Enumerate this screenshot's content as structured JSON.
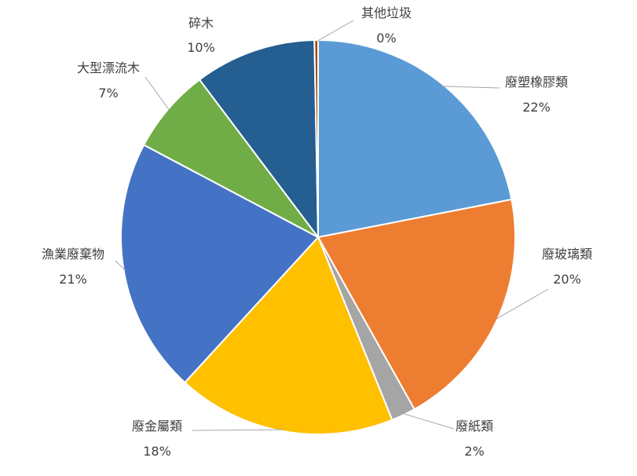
{
  "chart_data": {
    "type": "pie",
    "title": "",
    "slices": [
      {
        "label": "廢塑橡膠類",
        "value": 22,
        "percent_label": "22%",
        "color": "#5B9BD5"
      },
      {
        "label": "廢玻璃類",
        "value": 20,
        "percent_label": "20%",
        "color": "#ED7D31"
      },
      {
        "label": "廢紙類",
        "value": 2,
        "percent_label": "2%",
        "color": "#A5A5A5"
      },
      {
        "label": "廢金屬類",
        "value": 18,
        "percent_label": "18%",
        "color": "#FFC000"
      },
      {
        "label": "漁業廢棄物",
        "value": 21,
        "percent_label": "21%",
        "color": "#4472C4"
      },
      {
        "label": "大型漂流木",
        "value": 7,
        "percent_label": "7%",
        "color": "#70AD47"
      },
      {
        "label": "碎木",
        "value": 10,
        "percent_label": "10%",
        "color": "#255E91"
      },
      {
        "label": "其他垃圾",
        "value": 0.3,
        "percent_label": "0%",
        "color": "#9E480E"
      }
    ],
    "start_angle_deg": 0,
    "direction": "clockwise",
    "legend": "none",
    "data_labels": "outside with leader lines"
  }
}
